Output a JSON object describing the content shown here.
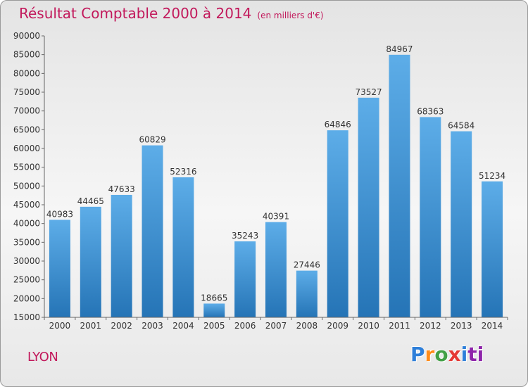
{
  "title": "Résultat Comptable 2000 à 2014",
  "subtitle": "(en milliers d'€)",
  "city": "LYON",
  "logo": {
    "letters": [
      "P",
      "r",
      "o",
      "x",
      "i",
      "ti"
    ]
  },
  "colors": {
    "bar_top": "#5dade8",
    "bar_bottom": "#2574b6",
    "title": "#c2185b"
  },
  "chart_data": {
    "type": "bar",
    "title": "Résultat Comptable 2000 à 2014",
    "xlabel": "",
    "ylabel": "",
    "categories": [
      "2000",
      "2001",
      "2002",
      "2003",
      "2004",
      "2005",
      "2006",
      "2007",
      "2008",
      "2009",
      "2010",
      "2011",
      "2012",
      "2013",
      "2014"
    ],
    "values": [
      40983,
      44465,
      47633,
      60829,
      52316,
      18665,
      35243,
      40391,
      27446,
      64846,
      73527,
      84967,
      68363,
      64584,
      51234
    ],
    "ylim": [
      15000,
      90000
    ],
    "yticks": [
      15000,
      20000,
      25000,
      30000,
      35000,
      40000,
      45000,
      50000,
      55000,
      60000,
      65000,
      70000,
      75000,
      80000,
      85000,
      90000
    ],
    "grid": false,
    "data_labels": true
  }
}
